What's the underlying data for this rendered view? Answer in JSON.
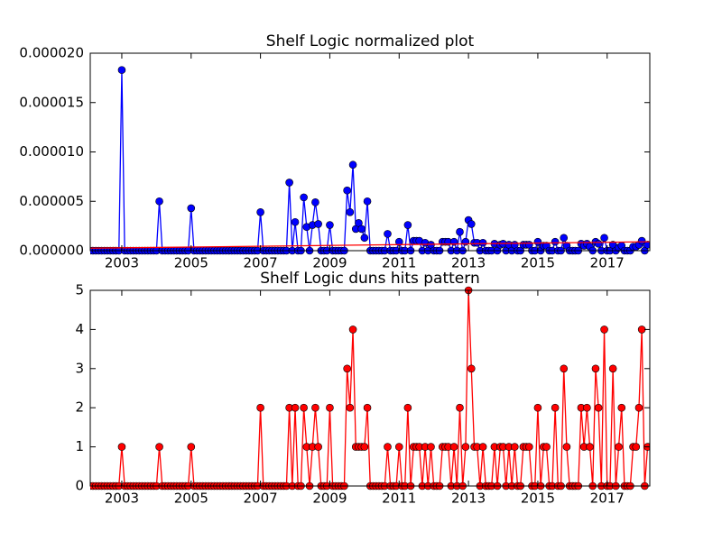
{
  "chart_data": [
    {
      "type": "line",
      "title": "Shelf Logic normalized plot",
      "x": [
        2002.083,
        2002.167,
        2002.25,
        2002.333,
        2002.417,
        2002.5,
        2002.583,
        2002.667,
        2002.75,
        2002.833,
        2002.917,
        2003,
        2003.083,
        2003.167,
        2003.25,
        2003.333,
        2003.417,
        2003.5,
        2003.583,
        2003.667,
        2003.75,
        2003.833,
        2003.917,
        2004,
        2004.083,
        2004.167,
        2004.25,
        2004.333,
        2004.417,
        2004.5,
        2004.583,
        2004.667,
        2004.75,
        2004.833,
        2004.917,
        2005,
        2005.083,
        2005.167,
        2005.25,
        2005.333,
        2005.417,
        2005.5,
        2005.583,
        2005.667,
        2005.75,
        2005.833,
        2005.917,
        2006,
        2006.083,
        2006.167,
        2006.25,
        2006.333,
        2006.417,
        2006.5,
        2006.583,
        2006.667,
        2006.75,
        2006.833,
        2006.917,
        2007,
        2007.083,
        2007.167,
        2007.25,
        2007.333,
        2007.417,
        2007.5,
        2007.583,
        2007.667,
        2007.75,
        2007.833,
        2007.917,
        2008,
        2008.083,
        2008.167,
        2008.25,
        2008.333,
        2008.417,
        2008.5,
        2008.583,
        2008.667,
        2008.75,
        2008.833,
        2008.917,
        2009,
        2009.083,
        2009.167,
        2009.25,
        2009.333,
        2009.417,
        2009.5,
        2009.583,
        2009.667,
        2009.75,
        2009.833,
        2009.917,
        2010,
        2010.083,
        2010.167,
        2010.25,
        2010.333,
        2010.417,
        2010.5,
        2010.583,
        2010.667,
        2010.75,
        2010.833,
        2010.917,
        2011,
        2011.083,
        2011.167,
        2011.25,
        2011.333,
        2011.417,
        2011.5,
        2011.583,
        2011.667,
        2011.75,
        2011.833,
        2011.917,
        2012,
        2012.083,
        2012.167,
        2012.25,
        2012.333,
        2012.417,
        2012.5,
        2012.583,
        2012.667,
        2012.75,
        2012.833,
        2012.917,
        2013,
        2013.083,
        2013.167,
        2013.25,
        2013.333,
        2013.417,
        2013.5,
        2013.583,
        2013.667,
        2013.75,
        2013.833,
        2013.917,
        2014,
        2014.083,
        2014.167,
        2014.25,
        2014.333,
        2014.417,
        2014.5,
        2014.583,
        2014.667,
        2014.75,
        2014.833,
        2014.917,
        2015,
        2015.083,
        2015.167,
        2015.25,
        2015.333,
        2015.417,
        2015.5,
        2015.583,
        2015.667,
        2015.75,
        2015.833,
        2015.917,
        2016,
        2016.083,
        2016.167,
        2016.25,
        2016.333,
        2016.417,
        2016.5,
        2016.583,
        2016.667,
        2016.75,
        2016.833,
        2016.917,
        2017,
        2017.083,
        2017.167,
        2017.25,
        2017.333,
        2017.417,
        2017.5,
        2017.583,
        2017.667,
        2017.75,
        2017.833,
        2017.917,
        2018,
        2018.083,
        2018.167
      ],
      "series": [
        {
          "color": "#0000ff",
          "marker": "o",
          "values": [
            0,
            0,
            0,
            0,
            0,
            0,
            0,
            0,
            0,
            0,
            0,
            1.83e-05,
            0,
            0,
            0,
            0,
            0,
            0,
            0,
            0,
            0,
            0,
            0,
            0,
            5e-06,
            0,
            0,
            0,
            0,
            0,
            0,
            0,
            0,
            0,
            0,
            4.3e-06,
            0,
            0,
            0,
            0,
            0,
            0,
            0,
            0,
            0,
            0,
            0,
            0,
            0,
            0,
            0,
            0,
            0,
            0,
            0,
            0,
            0,
            0,
            0,
            3.9e-06,
            0,
            0,
            0,
            0,
            0,
            0,
            0,
            0,
            0,
            6.9e-06,
            0,
            2.9e-06,
            0,
            0,
            5.4e-06,
            2.4e-06,
            0,
            2.6e-06,
            4.9e-06,
            2.7e-06,
            0,
            0,
            0,
            2.6e-06,
            0,
            0,
            0,
            0,
            0,
            6.1e-06,
            3.9e-06,
            8.7e-06,
            2.2e-06,
            2.8e-06,
            2.2e-06,
            1.3e-06,
            5e-06,
            0,
            0,
            0,
            0,
            0,
            0,
            1.7e-06,
            0,
            0,
            0,
            9e-07,
            0,
            0,
            2.6e-06,
            0,
            1e-06,
            1e-06,
            1e-06,
            0,
            8e-07,
            0,
            6e-07,
            0,
            0,
            0,
            9e-07,
            9e-07,
            9e-07,
            0,
            9e-07,
            0,
            1.9e-06,
            0,
            9e-07,
            3.1e-06,
            2.7e-06,
            8e-07,
            8e-07,
            0,
            8e-07,
            0,
            0,
            0,
            7e-07,
            0,
            6e-07,
            7e-07,
            0,
            6e-07,
            0,
            6e-07,
            0,
            0,
            6e-07,
            6e-07,
            6e-07,
            0,
            0,
            9e-07,
            0,
            5e-07,
            5e-07,
            0,
            0,
            9e-07,
            0,
            0,
            1.3e-06,
            5e-07,
            0,
            0,
            0,
            0,
            7e-07,
            5e-07,
            7e-07,
            4e-07,
            0,
            9e-07,
            7e-07,
            0,
            1.3e-06,
            0,
            0,
            6e-07,
            0,
            3e-07,
            5e-07,
            0,
            0,
            0,
            4e-07,
            4e-07,
            6e-07,
            1e-06,
            0,
            6e-07
          ]
        },
        {
          "color": "#ff0000",
          "x": [
            2002.09,
            2018.23
          ],
          "values": [
            2.5e-07,
            9e-07
          ]
        }
      ],
      "xlim": [
        2002.09,
        2018.23
      ],
      "xticks": [
        2003,
        2005,
        2007,
        2009,
        2011,
        2013,
        2015,
        2017
      ],
      "ylim": [
        0,
        2e-05
      ],
      "yticks": [
        {
          "value": 0,
          "label": "0.000000"
        },
        {
          "value": 5e-06,
          "label": "0.000005"
        },
        {
          "value": 1e-05,
          "label": "0.000010"
        },
        {
          "value": 1.5e-05,
          "label": "0.000015"
        },
        {
          "value": 2e-05,
          "label": "0.000020"
        }
      ]
    },
    {
      "type": "line",
      "title": "Shelf Logic duns hits pattern",
      "x": [
        2002.083,
        2002.167,
        2002.25,
        2002.333,
        2002.417,
        2002.5,
        2002.583,
        2002.667,
        2002.75,
        2002.833,
        2002.917,
        2003,
        2003.083,
        2003.167,
        2003.25,
        2003.333,
        2003.417,
        2003.5,
        2003.583,
        2003.667,
        2003.75,
        2003.833,
        2003.917,
        2004,
        2004.083,
        2004.167,
        2004.25,
        2004.333,
        2004.417,
        2004.5,
        2004.583,
        2004.667,
        2004.75,
        2004.833,
        2004.917,
        2005,
        2005.083,
        2005.167,
        2005.25,
        2005.333,
        2005.417,
        2005.5,
        2005.583,
        2005.667,
        2005.75,
        2005.833,
        2005.917,
        2006,
        2006.083,
        2006.167,
        2006.25,
        2006.333,
        2006.417,
        2006.5,
        2006.583,
        2006.667,
        2006.75,
        2006.833,
        2006.917,
        2007,
        2007.083,
        2007.167,
        2007.25,
        2007.333,
        2007.417,
        2007.5,
        2007.583,
        2007.667,
        2007.75,
        2007.833,
        2007.917,
        2008,
        2008.083,
        2008.167,
        2008.25,
        2008.333,
        2008.417,
        2008.5,
        2008.583,
        2008.667,
        2008.75,
        2008.833,
        2008.917,
        2009,
        2009.083,
        2009.167,
        2009.25,
        2009.333,
        2009.417,
        2009.5,
        2009.583,
        2009.667,
        2009.75,
        2009.833,
        2009.917,
        2010,
        2010.083,
        2010.167,
        2010.25,
        2010.333,
        2010.417,
        2010.5,
        2010.583,
        2010.667,
        2010.75,
        2010.833,
        2010.917,
        2011,
        2011.083,
        2011.167,
        2011.25,
        2011.333,
        2011.417,
        2011.5,
        2011.583,
        2011.667,
        2011.75,
        2011.833,
        2011.917,
        2012,
        2012.083,
        2012.167,
        2012.25,
        2012.333,
        2012.417,
        2012.5,
        2012.583,
        2012.667,
        2012.75,
        2012.833,
        2012.917,
        2013,
        2013.083,
        2013.167,
        2013.25,
        2013.333,
        2013.417,
        2013.5,
        2013.583,
        2013.667,
        2013.75,
        2013.833,
        2013.917,
        2014,
        2014.083,
        2014.167,
        2014.25,
        2014.333,
        2014.417,
        2014.5,
        2014.583,
        2014.667,
        2014.75,
        2014.833,
        2014.917,
        2015,
        2015.083,
        2015.167,
        2015.25,
        2015.333,
        2015.417,
        2015.5,
        2015.583,
        2015.667,
        2015.75,
        2015.833,
        2015.917,
        2016,
        2016.083,
        2016.167,
        2016.25,
        2016.333,
        2016.417,
        2016.5,
        2016.583,
        2016.667,
        2016.75,
        2016.833,
        2016.917,
        2017,
        2017.083,
        2017.167,
        2017.25,
        2017.333,
        2017.417,
        2017.5,
        2017.583,
        2017.667,
        2017.75,
        2017.833,
        2017.917,
        2018,
        2018.083,
        2018.167
      ],
      "series": [
        {
          "color": "#ff0000",
          "marker": "o",
          "values": [
            0,
            0,
            0,
            0,
            0,
            0,
            0,
            0,
            0,
            0,
            0,
            1,
            0,
            0,
            0,
            0,
            0,
            0,
            0,
            0,
            0,
            0,
            0,
            0,
            1,
            0,
            0,
            0,
            0,
            0,
            0,
            0,
            0,
            0,
            0,
            1,
            0,
            0,
            0,
            0,
            0,
            0,
            0,
            0,
            0,
            0,
            0,
            0,
            0,
            0,
            0,
            0,
            0,
            0,
            0,
            0,
            0,
            0,
            0,
            2,
            0,
            0,
            0,
            0,
            0,
            0,
            0,
            0,
            0,
            2,
            0,
            2,
            0,
            0,
            2,
            1,
            0,
            1,
            2,
            1,
            0,
            0,
            0,
            2,
            0,
            0,
            0,
            0,
            0,
            3,
            2,
            4,
            1,
            1,
            1,
            1,
            2,
            0,
            0,
            0,
            0,
            0,
            0,
            1,
            0,
            0,
            0,
            1,
            0,
            0,
            2,
            0,
            1,
            1,
            1,
            0,
            1,
            0,
            1,
            0,
            0,
            0,
            1,
            1,
            1,
            0,
            1,
            0,
            2,
            0,
            1,
            5,
            3,
            1,
            1,
            0,
            1,
            0,
            0,
            0,
            1,
            0,
            1,
            1,
            0,
            1,
            0,
            1,
            0,
            0,
            1,
            1,
            1,
            0,
            0,
            2,
            0,
            1,
            1,
            0,
            0,
            2,
            0,
            0,
            3,
            1,
            0,
            0,
            0,
            0,
            2,
            1,
            2,
            1,
            0,
            3,
            2,
            0,
            4,
            0,
            0,
            3,
            0,
            1,
            2,
            0,
            0,
            0,
            1,
            1,
            2,
            4,
            0,
            1
          ]
        }
      ],
      "xlim": [
        2002.09,
        2018.23
      ],
      "xticks": [
        2003,
        2005,
        2007,
        2009,
        2011,
        2013,
        2015,
        2017
      ],
      "ylim": [
        0,
        5
      ],
      "yticks": [
        0,
        1,
        2,
        3,
        4,
        5
      ]
    }
  ]
}
